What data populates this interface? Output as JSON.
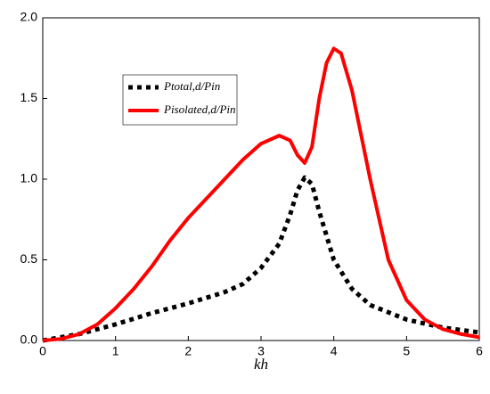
{
  "chart_data": {
    "type": "line",
    "xlabel": "kh",
    "xlim": [
      0,
      6
    ],
    "xticks": [
      0,
      1,
      2,
      3,
      4,
      5,
      6
    ],
    "ylim": [
      0,
      2
    ],
    "yticks": [
      {
        "value": 0,
        "label": "0.0"
      },
      {
        "value": 0.5,
        "label": "0.5"
      },
      {
        "value": 1,
        "label": "1.0"
      },
      {
        "value": 1.5,
        "label": "1.5"
      },
      {
        "value": 2,
        "label": "2.0"
      }
    ],
    "series": [
      {
        "name": "Ptotal,d/Pin",
        "color": "#000000",
        "dash": "dotted",
        "x": [
          0,
          0.5,
          1,
          1.5,
          2,
          2.5,
          2.75,
          3,
          3.25,
          3.4,
          3.5,
          3.6,
          3.7,
          3.8,
          4,
          4.25,
          4.5,
          5,
          5.5,
          6
        ],
        "values": [
          0,
          0.04,
          0.1,
          0.17,
          0.23,
          0.3,
          0.35,
          0.45,
          0.6,
          0.78,
          0.93,
          1.01,
          0.97,
          0.8,
          0.5,
          0.32,
          0.22,
          0.13,
          0.08,
          0.05
        ]
      },
      {
        "name": "Pisolated,d/Pin",
        "color": "#ff0000",
        "dash": "solid",
        "x": [
          0,
          0.25,
          0.5,
          0.75,
          1,
          1.25,
          1.5,
          1.75,
          2,
          2.25,
          2.5,
          2.75,
          3,
          3.25,
          3.4,
          3.5,
          3.6,
          3.7,
          3.8,
          3.9,
          4,
          4.1,
          4.25,
          4.5,
          4.75,
          5,
          5.25,
          5.5,
          5.75,
          6
        ],
        "values": [
          0,
          0.01,
          0.04,
          0.1,
          0.2,
          0.32,
          0.46,
          0.62,
          0.76,
          0.88,
          1.0,
          1.12,
          1.22,
          1.27,
          1.24,
          1.15,
          1.1,
          1.2,
          1.5,
          1.72,
          1.81,
          1.78,
          1.55,
          1.0,
          0.5,
          0.25,
          0.13,
          0.07,
          0.04,
          0.02
        ]
      }
    ]
  }
}
